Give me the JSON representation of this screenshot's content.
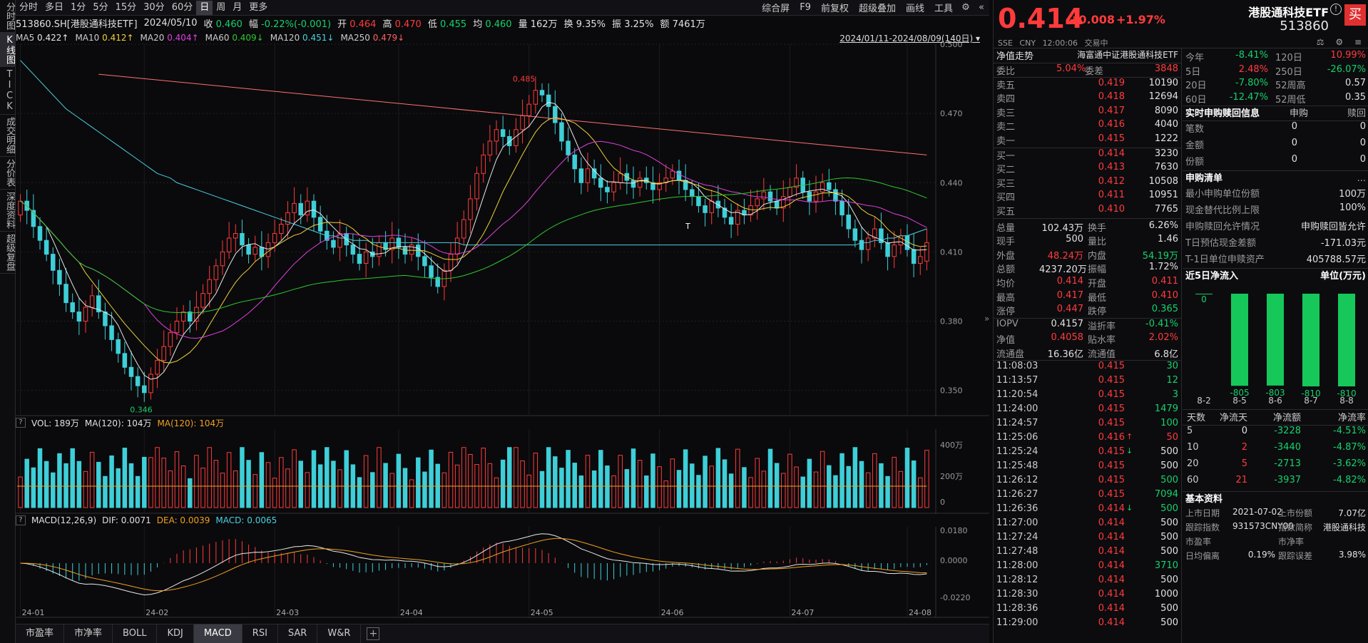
{
  "left_tabs": [
    "分时图",
    "K线图",
    "TICK",
    "成交明细",
    "分价表",
    "深度资料",
    "超级复盘"
  ],
  "toolbar": {
    "periods": [
      "分时",
      "多日",
      "1分",
      "5分",
      "15分",
      "30分",
      "60分",
      "日",
      "周",
      "月",
      "更多"
    ],
    "active_period": "日",
    "tools": [
      "综合屏",
      "F9",
      "前复权",
      "超级叠加",
      "画线",
      "工具"
    ]
  },
  "info": {
    "code": "513860.SH[港股通科技ETF]",
    "date": "2024/05/10",
    "close_label": "收",
    "close": "0.460",
    "amp_label": "幅",
    "amp": "-0.22%(-0.001)",
    "open_label": "开",
    "open": "0.464",
    "high_label": "高",
    "high": "0.470",
    "low_label": "低",
    "low": "0.455",
    "avg_label": "均",
    "avg": "0.460",
    "vol_label": "量",
    "vol": "162万",
    "turn_label": "换",
    "turn": "9.35%",
    "swing_label": "振",
    "swing": "3.25%",
    "amt_label": "额",
    "amt": "7461万"
  },
  "ma": [
    {
      "k": "MA5",
      "v": "0.422↑",
      "color": "#e8e8e8"
    },
    {
      "k": "MA10",
      "v": "0.412↑",
      "color": "#f0d23a"
    },
    {
      "k": "MA20",
      "v": "0.404↑",
      "color": "#e040e0"
    },
    {
      "k": "MA60",
      "v": "0.409↓",
      "color": "#2fc82f"
    },
    {
      "k": "MA120",
      "v": "0.451↓",
      "color": "#4ad0e0"
    },
    {
      "k": "MA250",
      "v": "0.479↓",
      "color": "#ff6060"
    }
  ],
  "date_range": "2024/01/11-2024/08/09(140日)",
  "vol_header": {
    "vol": "VOL: 189万",
    "ma": "MA(120): 104万",
    "ma2": "MA(120): 104万"
  },
  "macd_header": {
    "name": "MACD(12,26,9)",
    "dif": "DIF: 0.0071",
    "dea": "DEA: 0.0039",
    "macd": "MACD: 0.0065"
  },
  "bottom_tabs": [
    "市盈率",
    "市净率",
    "BOLL",
    "KDJ",
    "MACD",
    "RSI",
    "SAR",
    "W&R"
  ],
  "active_bottom_tab": "MACD",
  "quote": {
    "price": "0.414",
    "chg": "+0.008",
    "pct": "+1.97%",
    "name": "港股通科技ETF",
    "code": "513860",
    "sub": [
      "SSE",
      "CNY",
      "12:00:06",
      "交易中"
    ],
    "buy": "买",
    "icons": "⚖ ⚙ ≡",
    "nav_label": "净值走势",
    "index_name": "海富通中证港股通科技ETF",
    "wb_label": "委比",
    "wb": "5.04%",
    "wc_label": "委差",
    "wc": "3848",
    "asks": [
      [
        "卖五",
        "0.419",
        "10190"
      ],
      [
        "卖四",
        "0.418",
        "12694"
      ],
      [
        "卖三",
        "0.417",
        "8090"
      ],
      [
        "卖二",
        "0.416",
        "4040"
      ],
      [
        "卖一",
        "0.415",
        "1222"
      ]
    ],
    "bids": [
      [
        "买一",
        "0.414",
        "3230"
      ],
      [
        "买二",
        "0.413",
        "7630"
      ],
      [
        "买三",
        "0.412",
        "10508"
      ],
      [
        "买四",
        "0.411",
        "10951"
      ],
      [
        "买五",
        "0.410",
        "7765"
      ]
    ],
    "stats": [
      [
        "总量",
        "102.43万",
        "wht",
        "换手",
        "6.26%",
        "wht"
      ],
      [
        "现手",
        "500",
        "wht",
        "量比",
        "1.46",
        "wht"
      ],
      [
        "外盘",
        "48.24万",
        "red",
        "内盘",
        "54.19万",
        "green"
      ],
      [
        "总额",
        "4237.20万",
        "wht",
        "振幅",
        "1.72%",
        "wht"
      ],
      [
        "均价",
        "0.414",
        "red",
        "开盘",
        "0.411",
        "red"
      ],
      [
        "最高",
        "0.417",
        "red",
        "最低",
        "0.410",
        "red"
      ],
      [
        "涨停",
        "0.447",
        "red",
        "跌停",
        "0.365",
        "green"
      ]
    ],
    "stats2": [
      [
        "IOPV",
        "0.4157",
        "wht",
        "溢折率",
        "-0.41%",
        "green"
      ],
      [
        "净值",
        "0.4058",
        "red",
        "贴水率",
        "2.02%",
        "red"
      ],
      [
        "流通盘",
        "16.36亿",
        "wht",
        "流通值",
        "6.8亿",
        "wht"
      ]
    ],
    "ticks": [
      [
        "11:08:03",
        "0.415",
        "30",
        "g",
        ""
      ],
      [
        "11:13:57",
        "0.415",
        "12",
        "g",
        ""
      ],
      [
        "11:20:54",
        "0.415",
        "3",
        "g",
        ""
      ],
      [
        "11:24:00",
        "0.415",
        "1479",
        "g",
        ""
      ],
      [
        "11:24:57",
        "0.415",
        "100",
        "g",
        ""
      ],
      [
        "11:25:06",
        "0.416",
        "50",
        "r",
        "↑"
      ],
      [
        "11:25:24",
        "0.415",
        "500",
        "w",
        "↓"
      ],
      [
        "11:25:48",
        "0.415",
        "500",
        "w",
        ""
      ],
      [
        "11:26:12",
        "0.415",
        "500",
        "g",
        ""
      ],
      [
        "11:26:27",
        "0.415",
        "7094",
        "g",
        ""
      ],
      [
        "11:26:36",
        "0.414",
        "500",
        "g",
        "↓"
      ],
      [
        "11:27:00",
        "0.414",
        "500",
        "w",
        ""
      ],
      [
        "11:27:24",
        "0.414",
        "500",
        "w",
        ""
      ],
      [
        "11:27:48",
        "0.414",
        "500",
        "w",
        ""
      ],
      [
        "11:28:00",
        "0.414",
        "3710",
        "g",
        ""
      ],
      [
        "11:28:12",
        "0.414",
        "500",
        "w",
        ""
      ],
      [
        "11:28:30",
        "0.414",
        "1000",
        "w",
        ""
      ],
      [
        "11:28:36",
        "0.414",
        "500",
        "w",
        ""
      ],
      [
        "11:29:00",
        "0.414",
        "500",
        "w",
        ""
      ]
    ],
    "perf": [
      [
        "今年",
        "-8.41%",
        "g",
        "120日",
        "10.99%",
        "r"
      ],
      [
        "5日",
        "2.48%",
        "r",
        "250日",
        "-26.07%",
        "g"
      ],
      [
        "20日",
        "-7.80%",
        "g",
        "52周高",
        "0.57",
        "w"
      ],
      [
        "60日",
        "-12.47%",
        "g",
        "52周低",
        "0.35",
        "w"
      ]
    ],
    "sg_title": "实时申购赎回信息",
    "sg_h1": "申购",
    "sg_h2": "赎回",
    "sg_rows": [
      [
        "笔数",
        "0",
        "0"
      ],
      [
        "金额",
        "0",
        "0"
      ],
      [
        "份额",
        "0",
        "0"
      ]
    ],
    "list_title": "申购清单",
    "list_more": "...",
    "list_rows": [
      [
        "最小申购单位份额",
        "100万"
      ],
      [
        "现金替代比例上限",
        "100%"
      ],
      [
        "申购赎回允许情况",
        "申购赎回皆允许"
      ],
      [
        "T日预估现金差额",
        "-171.03元"
      ],
      [
        "T-1日单位申赎资产",
        "405788.57元"
      ]
    ],
    "flow_title": "近5日净流入",
    "flow_unit": "单位(万元)",
    "flow_data": {
      "dates": [
        "8-2",
        "8-5",
        "8-6",
        "8-7",
        "8-8"
      ],
      "values": [
        0,
        -805,
        -803,
        -810,
        -810
      ]
    },
    "flow_table_hdr": [
      "天数",
      "净流天",
      "净流额",
      "净流率"
    ],
    "flow_table": [
      [
        "5",
        "0",
        "-3228",
        "-4.51%"
      ],
      [
        "10",
        "2",
        "-3440",
        "-4.87%"
      ],
      [
        "20",
        "5",
        "-2713",
        "-3.62%"
      ],
      [
        "60",
        "21",
        "-3937",
        "-4.82%"
      ]
    ],
    "basic_title": "基本资料",
    "basic_rows": [
      [
        "上市日期",
        "2021-07-02",
        "上市份额",
        "7.07亿"
      ],
      [
        "跟踪指数",
        "931573CNY00",
        "指数简称",
        "港股通科技"
      ],
      [
        "市盈率",
        "",
        "市净率",
        ""
      ],
      [
        "日均偏离",
        "0.19%",
        "跟踪误差",
        "3.98%"
      ]
    ]
  },
  "chart_data": {
    "type": "candlestick",
    "ylim": [
      0.34,
      0.5
    ],
    "yticks": [
      "0.500",
      "0.470",
      "0.440",
      "0.410",
      "0.380",
      "0.350"
    ],
    "xticks": [
      "24-01",
      "24-02",
      "24-03",
      "24-04",
      "24-05",
      "24-06",
      "24-07",
      "24-08"
    ],
    "annotations": {
      "high": "0.485",
      "low": "0.346",
      "T": "T"
    },
    "vol_ticks": [
      "400万",
      "200万",
      "0"
    ],
    "macd_ticks": [
      "0.0180",
      "0.0000",
      "-0.0220"
    ],
    "closes": [
      0.432,
      0.428,
      0.421,
      0.415,
      0.409,
      0.402,
      0.396,
      0.388,
      0.384,
      0.38,
      0.386,
      0.391,
      0.384,
      0.378,
      0.372,
      0.366,
      0.36,
      0.356,
      0.352,
      0.349,
      0.357,
      0.363,
      0.369,
      0.375,
      0.38,
      0.384,
      0.38,
      0.386,
      0.392,
      0.398,
      0.404,
      0.41,
      0.416,
      0.418,
      0.413,
      0.409,
      0.412,
      0.408,
      0.414,
      0.418,
      0.422,
      0.427,
      0.431,
      0.426,
      0.432,
      0.425,
      0.419,
      0.415,
      0.412,
      0.418,
      0.413,
      0.409,
      0.405,
      0.41,
      0.408,
      0.414,
      0.411,
      0.416,
      0.412,
      0.409,
      0.413,
      0.408,
      0.404,
      0.399,
      0.395,
      0.402,
      0.409,
      0.416,
      0.424,
      0.433,
      0.444,
      0.452,
      0.458,
      0.463,
      0.46,
      0.456,
      0.463,
      0.469,
      0.474,
      0.48,
      0.478,
      0.473,
      0.466,
      0.458,
      0.452,
      0.446,
      0.44,
      0.446,
      0.442,
      0.438,
      0.436,
      0.44,
      0.444,
      0.441,
      0.438,
      0.442,
      0.44,
      0.437,
      0.44,
      0.442,
      0.445,
      0.441,
      0.437,
      0.434,
      0.43,
      0.427,
      0.432,
      0.429,
      0.425,
      0.422,
      0.428,
      0.426,
      0.43,
      0.433,
      0.436,
      0.432,
      0.429,
      0.434,
      0.438,
      0.442,
      0.436,
      0.432,
      0.436,
      0.44,
      0.437,
      0.432,
      0.426,
      0.42,
      0.415,
      0.411,
      0.416,
      0.42,
      0.414,
      0.408,
      0.413,
      0.417,
      0.411,
      0.405,
      0.408,
      0.414
    ],
    "opens": [
      0.426,
      0.432,
      0.428,
      0.421,
      0.415,
      0.409,
      0.402,
      0.396,
      0.388,
      0.384,
      0.38,
      0.386,
      0.391,
      0.384,
      0.378,
      0.372,
      0.366,
      0.36,
      0.356,
      0.352,
      0.349,
      0.357,
      0.363,
      0.369,
      0.375,
      0.38,
      0.384,
      0.38,
      0.386,
      0.392,
      0.398,
      0.404,
      0.41,
      0.416,
      0.418,
      0.413,
      0.409,
      0.412,
      0.408,
      0.414,
      0.418,
      0.422,
      0.427,
      0.431,
      0.426,
      0.432,
      0.425,
      0.419,
      0.415,
      0.412,
      0.418,
      0.413,
      0.409,
      0.405,
      0.41,
      0.408,
      0.414,
      0.411,
      0.416,
      0.412,
      0.409,
      0.413,
      0.408,
      0.404,
      0.399,
      0.395,
      0.402,
      0.409,
      0.416,
      0.424,
      0.433,
      0.444,
      0.452,
      0.458,
      0.463,
      0.46,
      0.456,
      0.463,
      0.469,
      0.474,
      0.48,
      0.478,
      0.473,
      0.466,
      0.458,
      0.452,
      0.446,
      0.44,
      0.446,
      0.442,
      0.438,
      0.436,
      0.44,
      0.444,
      0.441,
      0.438,
      0.442,
      0.44,
      0.437,
      0.44,
      0.442,
      0.445,
      0.441,
      0.437,
      0.434,
      0.43,
      0.427,
      0.432,
      0.429,
      0.425,
      0.422,
      0.428,
      0.426,
      0.43,
      0.433,
      0.436,
      0.432,
      0.429,
      0.434,
      0.438,
      0.442,
      0.436,
      0.432,
      0.436,
      0.44,
      0.437,
      0.432,
      0.426,
      0.42,
      0.415,
      0.411,
      0.416,
      0.42,
      0.414,
      0.408,
      0.413,
      0.417,
      0.411,
      0.405,
      0.406
    ],
    "ma120": [
      0.493,
      0.49,
      0.487,
      0.484,
      0.481,
      0.478,
      0.475,
      0.472,
      0.47,
      0.468,
      0.466,
      0.464,
      0.462,
      0.46,
      0.458,
      0.456,
      0.454,
      0.452,
      0.45,
      0.448,
      0.446,
      0.444,
      0.443,
      0.442,
      0.44,
      0.439,
      0.438,
      0.437,
      0.436,
      0.435,
      0.434,
      0.433,
      0.432,
      0.431,
      0.43,
      0.429,
      0.428,
      0.427,
      0.426,
      0.425,
      0.424,
      0.423,
      0.422,
      0.421,
      0.42,
      0.419,
      0.418,
      0.417,
      0.417,
      0.416,
      0.416,
      0.415,
      0.415,
      0.415,
      0.414,
      0.414,
      0.414,
      0.414,
      0.414,
      0.414,
      0.414,
      0.414,
      0.414,
      0.414,
      0.414,
      0.414,
      0.414,
      0.414,
      0.413,
      0.413,
      0.413,
      0.413,
      0.413,
      0.413,
      0.413,
      0.413,
      0.413,
      0.413,
      0.413,
      0.413,
      0.413,
      0.413,
      0.413,
      0.413,
      0.413,
      0.413,
      0.413,
      0.413,
      0.413,
      0.413,
      0.413,
      0.413,
      0.413,
      0.413,
      0.413,
      0.413,
      0.413,
      0.413,
      0.413,
      0.413,
      0.413,
      0.413,
      0.413,
      0.413,
      0.413,
      0.413,
      0.413,
      0.413,
      0.413,
      0.413,
      0.413,
      0.413,
      0.413,
      0.413,
      0.413,
      0.413,
      0.413,
      0.413,
      0.413,
      0.413,
      0.413,
      0.413,
      0.413,
      0.413,
      0.413,
      0.413,
      0.413,
      0.413,
      0.413,
      0.414,
      0.414,
      0.415,
      0.415,
      0.416,
      0.416,
      0.417,
      0.417,
      0.418,
      0.419,
      0.42
    ],
    "ma250_start": 0.487,
    "ma250_end": 0.452
  }
}
